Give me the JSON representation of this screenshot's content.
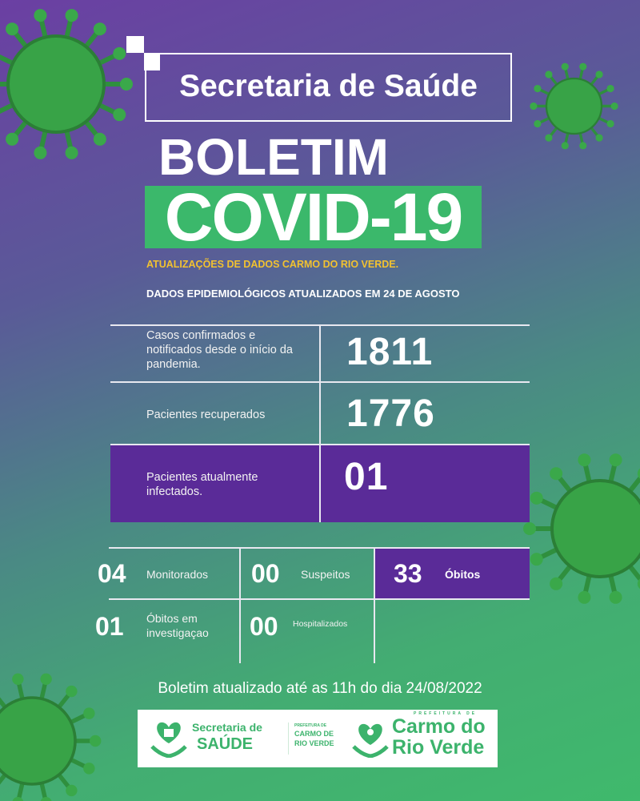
{
  "header": {
    "title": "Secretaria de Saúde",
    "boletim": "BOLETIM",
    "covid": "COVID-19",
    "subtitle": "ATUALIZAÇÕES DE DADOS CARMO DO RIO VERDE.",
    "updated": "DADOS EPIDEMIOLÓGICOS ATUALIZADOS EM 24 DE AGOSTO"
  },
  "main_table": [
    {
      "label": "Casos confirmados e notificados desde o início da pandemia.",
      "value": "1811"
    },
    {
      "label": "Pacientes recuperados",
      "value": "1776"
    },
    {
      "label": "Pacientes atualmente infectados.",
      "value": "01"
    }
  ],
  "stats": [
    {
      "value": "04",
      "label": "Monitorados"
    },
    {
      "value": "00",
      "label": "Suspeitos"
    },
    {
      "value": "33",
      "label": "Óbitos"
    },
    {
      "value": "01",
      "label": "Óbitos em investigaçao"
    },
    {
      "value": "00",
      "label": "Hospitalizados"
    }
  ],
  "footer": "Boletim atualizado até as 11h do dia 24/08/2022",
  "logos": {
    "sec_line1": "Secretaria de",
    "sec_line2": "SAÚDE",
    "pref_small": "PREFEITURA DE",
    "pref_name1": "CARMO DE",
    "pref_name2": "RIO VERDE",
    "big_pref": "PREFEITURA DE",
    "big_name1": "Carmo do",
    "big_name2": "Rio Verde"
  },
  "colors": {
    "purple": "#5a2b98",
    "green": "#3bb86b",
    "yellow": "#f2c230"
  }
}
